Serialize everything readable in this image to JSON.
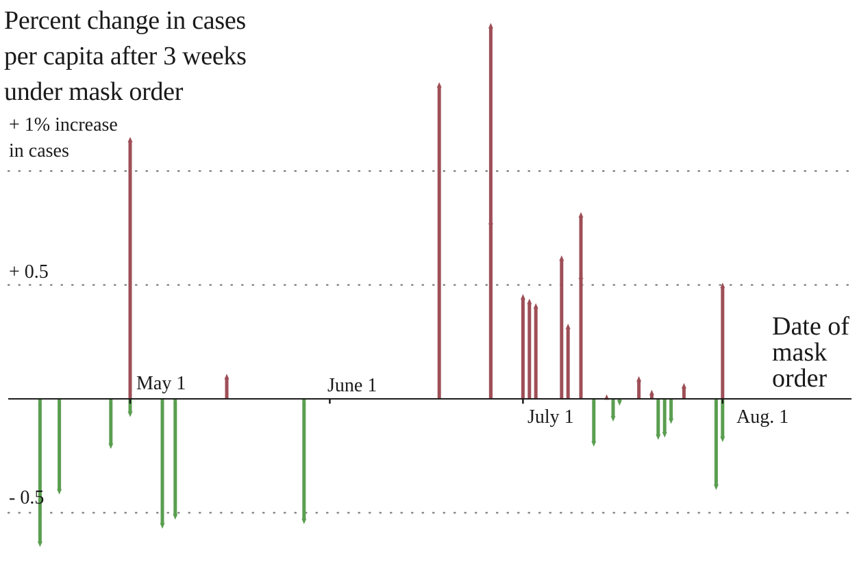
{
  "chart_data": {
    "type": "bar",
    "title": [
      "Percent change in cases",
      "per capita after 3 weeks",
      "under mask order"
    ],
    "xlabel": [
      "Date of",
      "mask",
      "order"
    ],
    "ylabel": "",
    "ylim": [
      -0.65,
      1.65
    ],
    "y_ticks": [
      {
        "value": 1.0,
        "label": [
          "+ 1% increase",
          "in cases"
        ]
      },
      {
        "value": 0.5,
        "label": [
          "+ 0.5"
        ]
      },
      {
        "value": -0.5,
        "label": [
          "- 0.5"
        ]
      }
    ],
    "x_ticks": [
      {
        "date": "2020-05-01",
        "label": "May 1"
      },
      {
        "date": "2020-06-01",
        "label": "June 1"
      },
      {
        "date": "2020-07-01",
        "label": "July 1"
      },
      {
        "date": "2020-08-01",
        "label": "Aug. 1"
      }
    ],
    "grid": "dotted horizontal",
    "colors": {
      "increase": "#9e4f57",
      "decrease": "#5a9e50",
      "axis": "#1a1a1a",
      "grid": "#777777"
    },
    "points": [
      {
        "date": "2020-04-17",
        "value": -0.65
      },
      {
        "date": "2020-04-20",
        "value": -0.42
      },
      {
        "date": "2020-04-28",
        "value": -0.22
      },
      {
        "date": "2020-05-01",
        "value": 1.15
      },
      {
        "date": "2020-05-01",
        "value": -0.08
      },
      {
        "date": "2020-05-06",
        "value": -0.57
      },
      {
        "date": "2020-05-08",
        "value": -0.53
      },
      {
        "date": "2020-05-16",
        "value": 0.11
      },
      {
        "date": "2020-05-28",
        "value": -0.55
      },
      {
        "date": "2020-06-18",
        "value": 1.39
      },
      {
        "date": "2020-06-26",
        "value": 1.65
      },
      {
        "date": "2020-06-26",
        "value": 0.79
      },
      {
        "date": "2020-07-01",
        "value": 0.46
      },
      {
        "date": "2020-07-02",
        "value": 0.44
      },
      {
        "date": "2020-07-03",
        "value": 0.42
      },
      {
        "date": "2020-07-07",
        "value": 0.63
      },
      {
        "date": "2020-07-08",
        "value": 0.33
      },
      {
        "date": "2020-07-10",
        "value": 0.82
      },
      {
        "date": "2020-07-10",
        "value": 0.55
      },
      {
        "date": "2020-07-12",
        "value": -0.21
      },
      {
        "date": "2020-07-14",
        "value": 0.02
      },
      {
        "date": "2020-07-15",
        "value": -0.1
      },
      {
        "date": "2020-07-16",
        "value": -0.03
      },
      {
        "date": "2020-07-19",
        "value": 0.1
      },
      {
        "date": "2020-07-21",
        "value": 0.04
      },
      {
        "date": "2020-07-22",
        "value": -0.18
      },
      {
        "date": "2020-07-23",
        "value": -0.17
      },
      {
        "date": "2020-07-24",
        "value": -0.11
      },
      {
        "date": "2020-07-26",
        "value": 0.07
      },
      {
        "date": "2020-07-31",
        "value": -0.4
      },
      {
        "date": "2020-08-01",
        "value": 0.51
      },
      {
        "date": "2020-08-01",
        "value": -0.19
      }
    ]
  }
}
